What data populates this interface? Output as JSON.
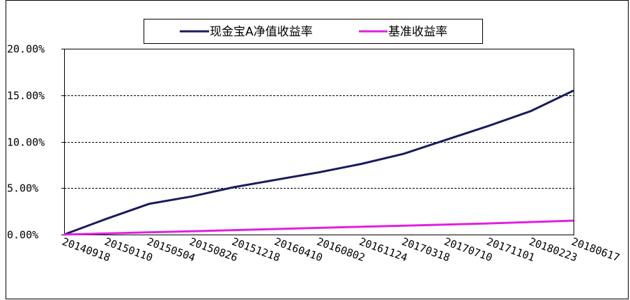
{
  "chart_data": {
    "type": "line",
    "title": "",
    "xlabel": "",
    "ylabel": "",
    "x": [
      "20140918",
      "20150110",
      "20150504",
      "20150826",
      "20151218",
      "20160410",
      "20160802",
      "20161124",
      "20170318",
      "20170710",
      "20171101",
      "20180223",
      "20180617"
    ],
    "ylim": [
      0,
      20
    ],
    "yticks": [
      "0.00%",
      "5.00%",
      "10.00%",
      "15.00%",
      "20.00%"
    ],
    "grid": "horizontal-dashed",
    "legend_position": "top-center",
    "series": [
      {
        "name": "现金宝A净值收益率",
        "color": "#1a1a5e",
        "values": [
          0.0,
          1.7,
          3.3,
          4.1,
          5.1,
          5.9,
          6.7,
          7.6,
          8.7,
          10.2,
          11.7,
          13.3,
          15.5
        ]
      },
      {
        "name": "基准收益率",
        "color": "#e020e0",
        "values": [
          0.0,
          0.12,
          0.24,
          0.36,
          0.48,
          0.6,
          0.72,
          0.84,
          0.96,
          1.08,
          1.2,
          1.35,
          1.5
        ]
      }
    ]
  }
}
